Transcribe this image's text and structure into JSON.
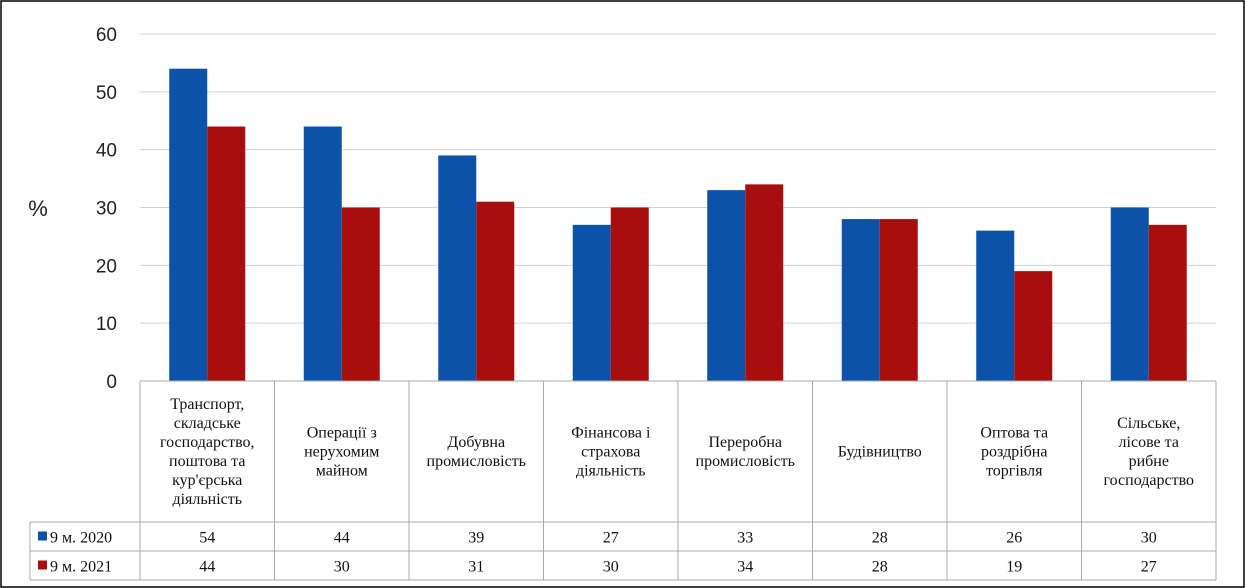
{
  "chart_data": {
    "type": "bar",
    "ylabel": "%",
    "ylim": [
      0,
      60
    ],
    "yticks": [
      0,
      10,
      20,
      30,
      40,
      50,
      60
    ],
    "grid": true,
    "legend_placement": "data-table-left",
    "categories": [
      [
        "Транспорт,",
        "складське",
        "господарство,",
        "поштова та",
        "кур'єрська",
        "діяльність"
      ],
      [
        "Операції з",
        "нерухомим",
        "майном"
      ],
      [
        "Добувна",
        "промисловість"
      ],
      [
        "Фінансова і",
        "страхова",
        "діяльність"
      ],
      [
        "Переробна",
        "промисловість"
      ],
      [
        "Будівництво"
      ],
      [
        "Оптова та",
        "роздрібна",
        "торгівля"
      ],
      [
        "Сільське,",
        "лісове та",
        "рибне",
        "господарство"
      ]
    ],
    "series": [
      {
        "name": "9 м. 2020",
        "color": "#0B52A8",
        "values": [
          54,
          44,
          39,
          27,
          33,
          28,
          26,
          30
        ]
      },
      {
        "name": "9 м. 2021",
        "color": "#A80E0E",
        "values": [
          44,
          30,
          31,
          30,
          34,
          28,
          19,
          27
        ]
      }
    ]
  }
}
